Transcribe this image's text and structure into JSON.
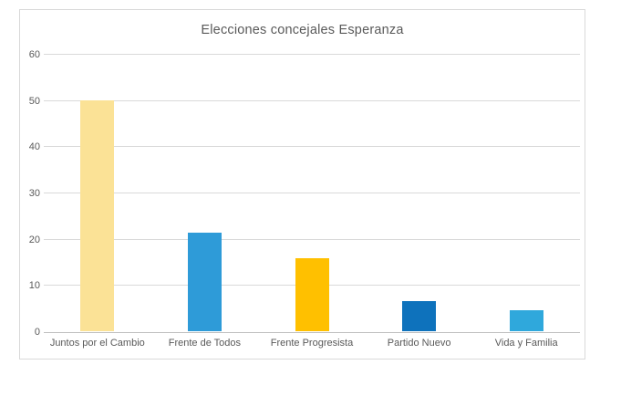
{
  "chart": {
    "frame_border_color": "#d9d9d9",
    "background_color": "#ffffff",
    "text_color": "#595959",
    "gridline_color": "#d9d9d9",
    "axis_line_color": "#bfbfbf"
  },
  "chart_data": {
    "type": "bar",
    "title": "Elecciones concejales Esperanza",
    "categories": [
      "Juntos por el Cambio",
      "Frente de Todos",
      "Frente Progresista",
      "Partido Nuevo",
      "Vida y Familia"
    ],
    "values": [
      50,
      21.3,
      15.8,
      6.6,
      4.6
    ],
    "bar_colors": [
      "#fbe296",
      "#2e9bd8",
      "#ffc000",
      "#0e72bc",
      "#2fa8dc"
    ],
    "xlabel": "",
    "ylabel": "",
    "ylim": [
      0,
      60
    ],
    "yticks": [
      0,
      10,
      20,
      30,
      40,
      50,
      60
    ],
    "grid": true,
    "legend": "none"
  }
}
